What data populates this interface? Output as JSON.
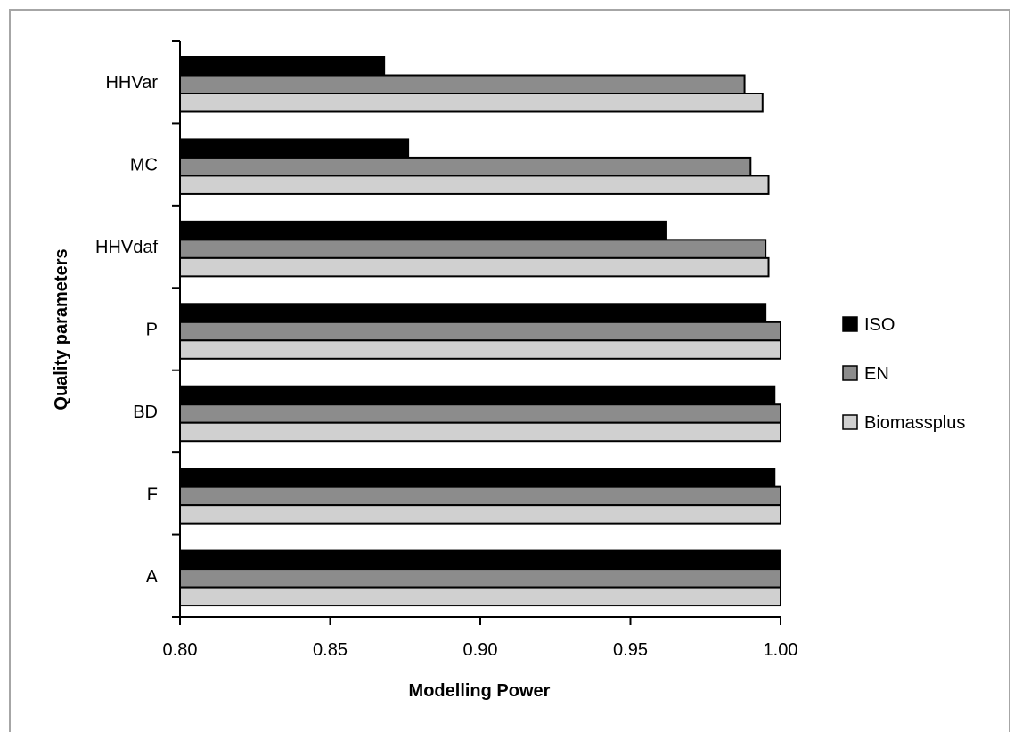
{
  "chart_data": {
    "type": "bar",
    "orientation": "horizontal",
    "categories": [
      "HHVar",
      "MC",
      "HHVdaf",
      "P",
      "BD",
      "F",
      "A"
    ],
    "series": [
      {
        "name": "ISO",
        "color": "#000000",
        "values": [
          0.868,
          0.876,
          0.962,
          0.995,
          0.998,
          0.998,
          1.0
        ]
      },
      {
        "name": "EN",
        "color": "#8c8c8c",
        "values": [
          0.988,
          0.99,
          0.995,
          1.0,
          1.0,
          1.0,
          1.0
        ]
      },
      {
        "name": "Biomassplus",
        "color": "#d0d0d0",
        "values": [
          0.994,
          0.996,
          0.996,
          1.0,
          1.0,
          1.0,
          1.0
        ]
      }
    ],
    "xlabel": "Modelling Power",
    "ylabel": "Quality parameters",
    "xlim": [
      0.8,
      1.0
    ],
    "xticks": [
      "0.80",
      "0.85",
      "0.90",
      "0.95",
      "1.00"
    ],
    "grid": false,
    "legend_position": "right"
  }
}
